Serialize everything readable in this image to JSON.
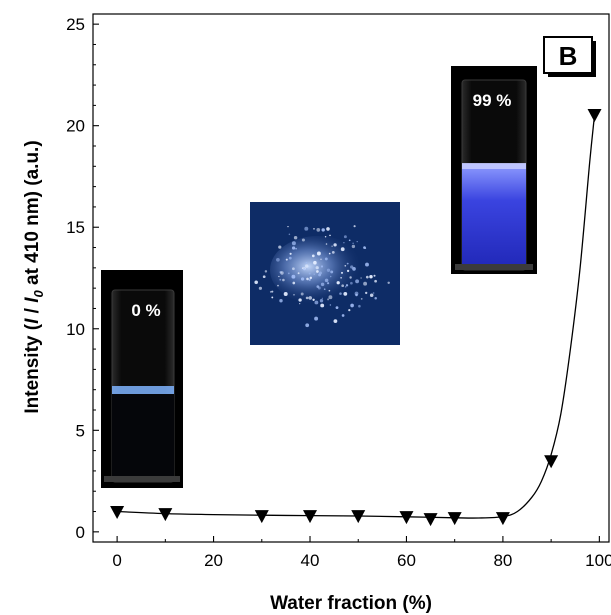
{
  "chart_data": {
    "type": "scatter",
    "panel_label": "B",
    "xlabel": "Water fraction (%)",
    "ylabel_parts": [
      "Intensity (",
      "I",
      " / ",
      "I",
      "0",
      " at 410 nm) (a.u.)"
    ],
    "xlim": [
      -5,
      102
    ],
    "ylim": [
      -0.5,
      25.5
    ],
    "xticks": [
      0,
      20,
      40,
      60,
      80,
      100
    ],
    "yticks": [
      0,
      5,
      10,
      15,
      20,
      25
    ],
    "marker": "down-triangle",
    "series": [
      {
        "x": [
          0,
          10,
          30,
          40,
          50,
          60,
          65,
          70,
          80,
          90,
          99
        ],
        "y": [
          0.95,
          0.85,
          0.75,
          0.75,
          0.75,
          0.7,
          0.6,
          0.65,
          0.65,
          3.45,
          20.5
        ]
      }
    ],
    "fit_curve": {
      "x": [
        0,
        10,
        20,
        30,
        40,
        50,
        60,
        70,
        75,
        80,
        83,
        86,
        88,
        90,
        92,
        94,
        96,
        98,
        99
      ],
      "y": [
        1.0,
        0.9,
        0.85,
        0.82,
        0.8,
        0.78,
        0.74,
        0.69,
        0.68,
        0.75,
        1.0,
        1.7,
        2.5,
        3.8,
        5.8,
        9.0,
        13.0,
        18.2,
        20.5
      ]
    },
    "insets": [
      {
        "label": "0 %"
      },
      {
        "label": ""
      },
      {
        "label": "99 %"
      }
    ],
    "grid": false,
    "legend": "none"
  }
}
